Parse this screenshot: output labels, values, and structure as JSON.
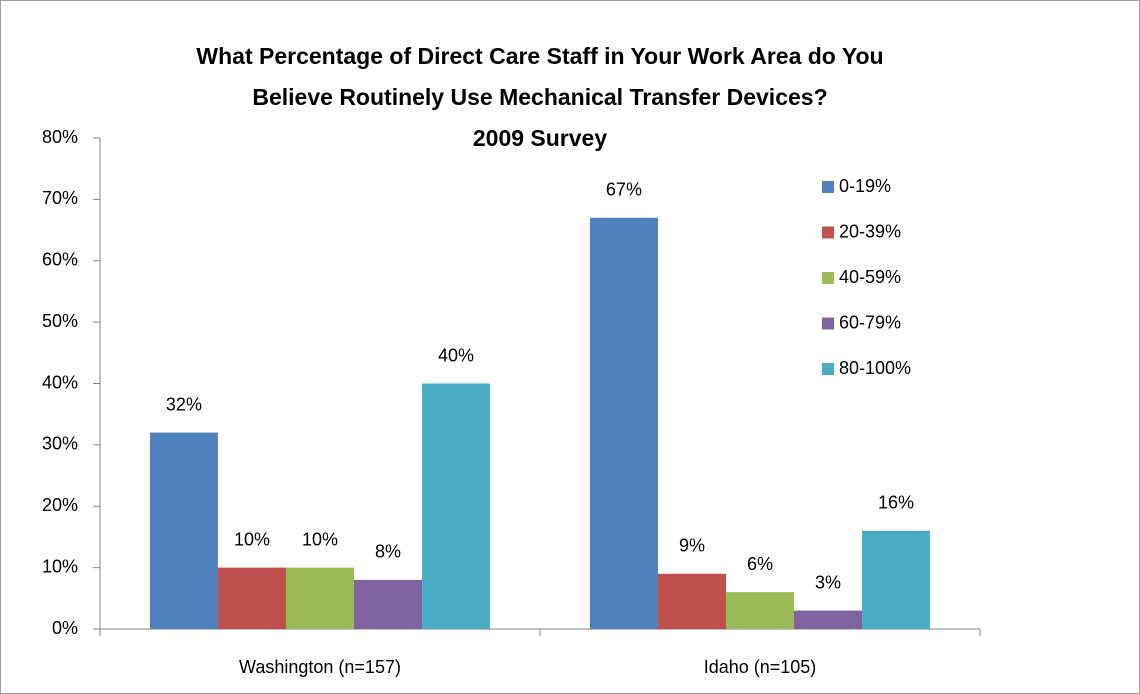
{
  "chart_data": {
    "type": "bar",
    "title": [
      "What Percentage of Direct Care Staff in Your Work Area do You",
      "Believe Routinely Use Mechanical Transfer Devices?",
      "2009 Survey"
    ],
    "categories": [
      "Washington (n=157)",
      "Idaho (n=105)"
    ],
    "series": [
      {
        "name": "0-19%",
        "color": "#4f81bd",
        "values": [
          32,
          67
        ],
        "value_labels": [
          "32%",
          "67%"
        ]
      },
      {
        "name": "20-39%",
        "color": "#c0504d",
        "values": [
          10,
          9
        ],
        "value_labels": [
          "10%",
          "9%"
        ]
      },
      {
        "name": "40-59%",
        "color": "#9bbb59",
        "values": [
          10,
          6
        ],
        "value_labels": [
          "10%",
          "6%"
        ]
      },
      {
        "name": "60-79%",
        "color": "#8064a2",
        "values": [
          8,
          3
        ],
        "value_labels": [
          "8%",
          "3%"
        ]
      },
      {
        "name": "80-100%",
        "color": "#4bacc6",
        "values": [
          40,
          16
        ],
        "value_labels": [
          "40%",
          "16%"
        ]
      }
    ],
    "ylim": [
      0,
      80
    ],
    "yticks": [
      {
        "value": 0,
        "label": "0%"
      },
      {
        "value": 10,
        "label": "10%"
      },
      {
        "value": 20,
        "label": "20%"
      },
      {
        "value": 30,
        "label": "30%"
      },
      {
        "value": 40,
        "label": "40%"
      },
      {
        "value": 50,
        "label": "50%"
      },
      {
        "value": 60,
        "label": "60%"
      },
      {
        "value": 70,
        "label": "70%"
      },
      {
        "value": 80,
        "label": "80%"
      }
    ],
    "grid": false,
    "legend": "right"
  }
}
